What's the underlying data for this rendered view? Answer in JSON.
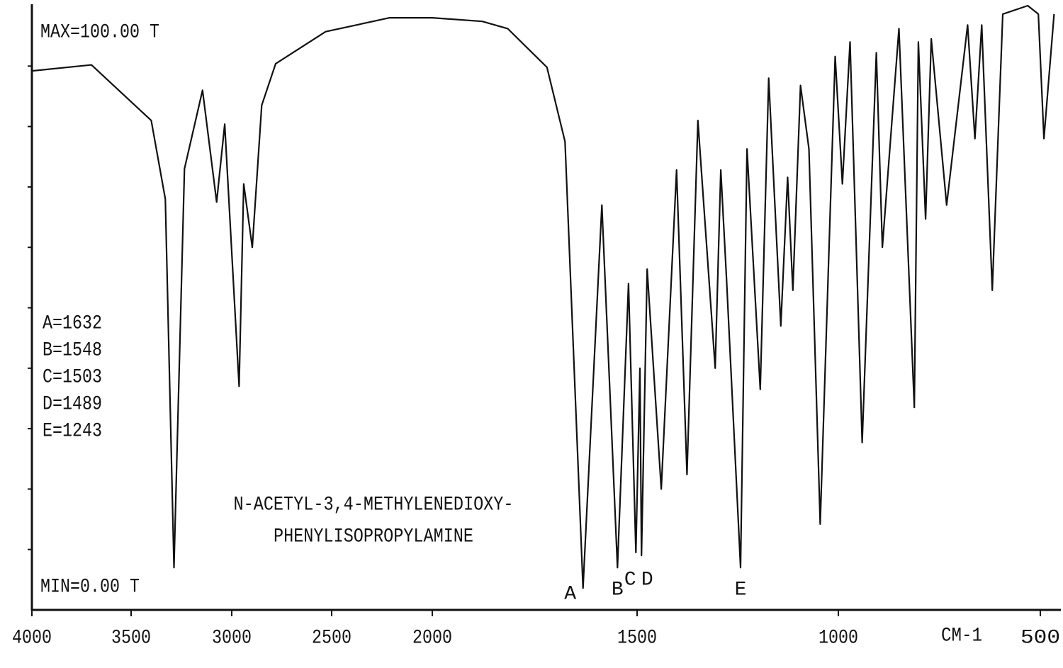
{
  "chart_data": {
    "type": "line",
    "max_label": "MAX=100.00 T",
    "min_label": "MIN=0.00 T",
    "x_label": "CM-1",
    "peak_table": [
      "A=1632",
      "B=1548",
      "C=1503",
      "D=1489",
      "E=1243"
    ],
    "title_lines": [
      "N-ACETYL-3,4-METHYLENEDIOXY-",
      "PHENYLISOPROPYLAMINE"
    ],
    "peaks": [
      {
        "label": "A",
        "x": 1632
      },
      {
        "label": "B",
        "x": 1548
      },
      {
        "label": "C",
        "x": 1503
      },
      {
        "label": "D",
        "x": 1489
      },
      {
        "label": "E",
        "x": 1243
      }
    ],
    "color": "#111111",
    "xlim": [
      4000,
      450
    ],
    "xticks": [
      4000,
      3500,
      3000,
      2500,
      2000,
      1500,
      1000,
      500
    ],
    "ylim": [
      0,
      100
    ],
    "yticks": [
      10,
      20,
      30,
      40,
      50,
      60,
      70,
      80,
      90
    ],
    "x": [
      4000,
      3700,
      3400,
      3330,
      3287,
      3235,
      3145,
      3075,
      3035,
      2963,
      2940,
      2897,
      2850,
      2780,
      2530,
      2212,
      2000,
      1878,
      1816,
      1720,
      1676,
      1632,
      1586,
      1548,
      1521,
      1503,
      1493,
      1489,
      1475,
      1440,
      1402,
      1376,
      1349,
      1306,
      1292,
      1278,
      1243,
      1227,
      1194,
      1173,
      1143,
      1126,
      1113,
      1094,
      1073,
      1045,
      1008,
      990,
      971,
      941,
      906,
      891,
      850,
      812,
      802,
      784,
      770,
      732,
      680,
      662,
      645,
      619,
      593,
      531,
      505,
      491,
      466
    ],
    "values": [
      89.2,
      90.2,
      81,
      68,
      7,
      73,
      86,
      67.5,
      80.4,
      37,
      70.5,
      60,
      83.5,
      90.4,
      95.7,
      98,
      98,
      97.4,
      96.2,
      89.8,
      77.5,
      3.6,
      67,
      7,
      54,
      9.5,
      40,
      9,
      56.4,
      20,
      72.8,
      22.4,
      81,
      40,
      72.8,
      55,
      7,
      76.3,
      36.5,
      88,
      47,
      71.6,
      52.9,
      86.8,
      76.3,
      14.2,
      91.6,
      70.5,
      94,
      27.7,
      92.2,
      60,
      96.2,
      33.5,
      94,
      64.7,
      94.5,
      67,
      96.8,
      78,
      96.8,
      52.9,
      98.6,
      100,
      98.6,
      78,
      98.6
    ]
  }
}
